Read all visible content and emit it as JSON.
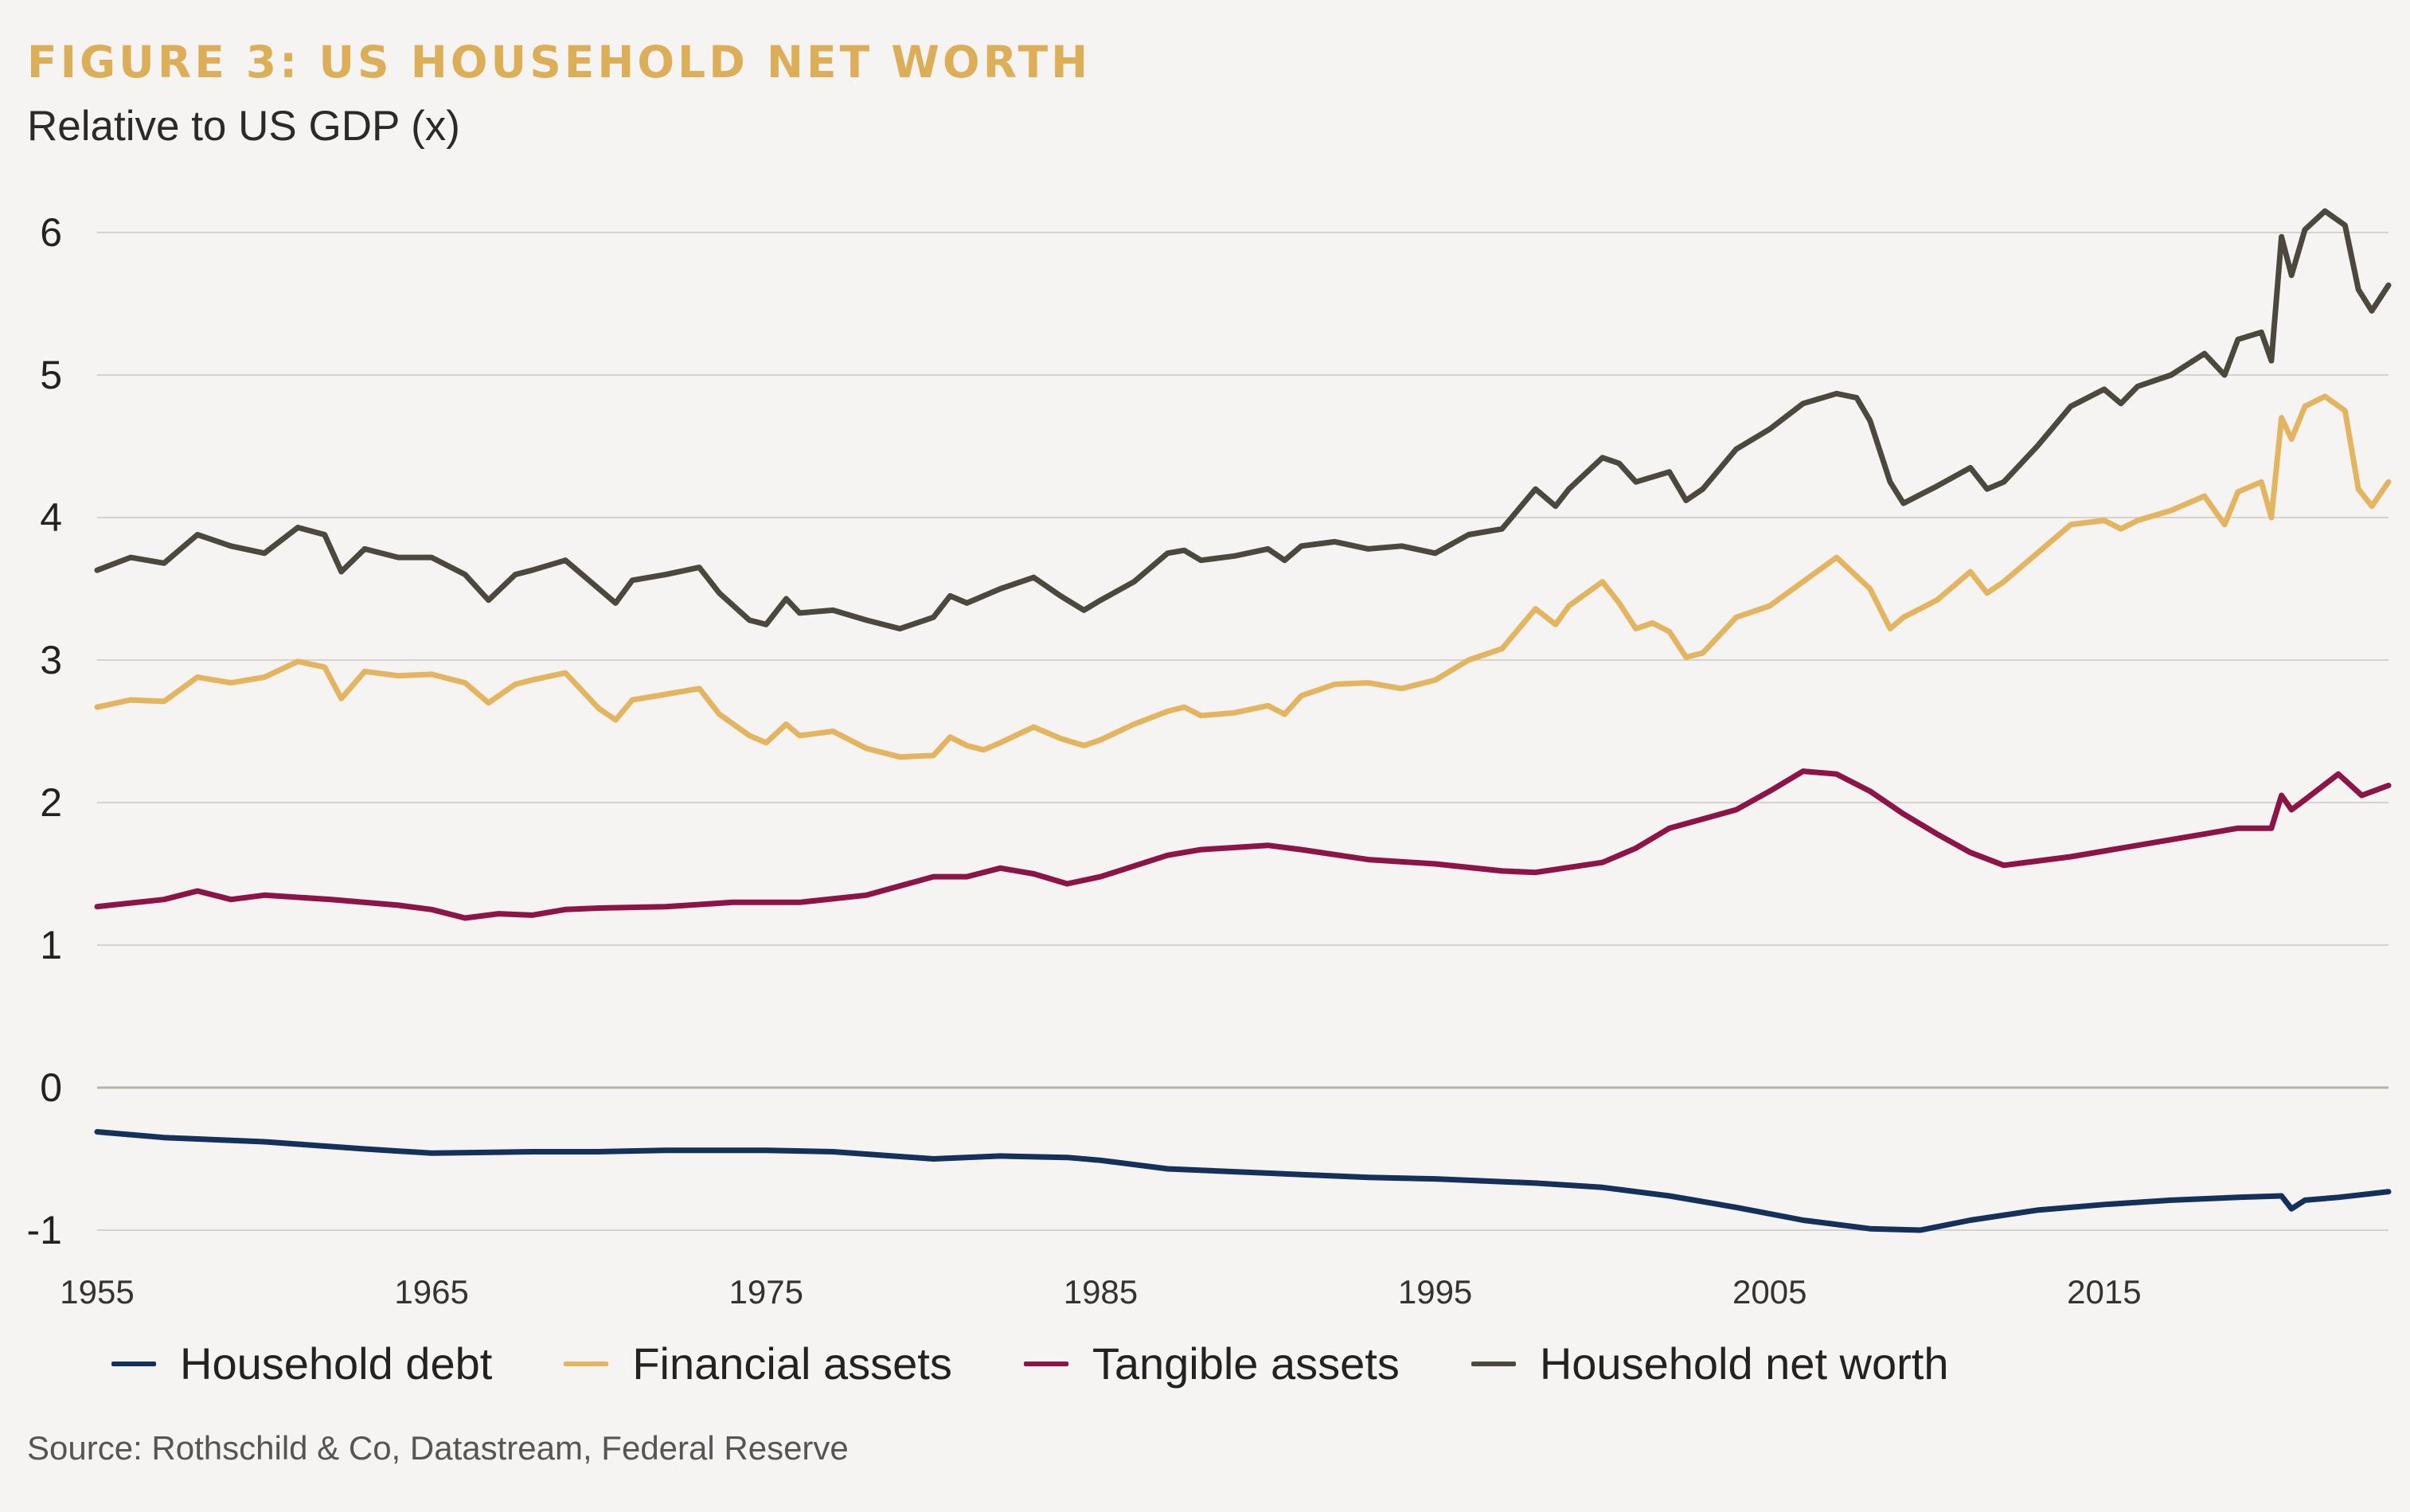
{
  "title": "FIGURE 3: US HOUSEHOLD NET WORTH",
  "subtitle": "Relative to US GDP (x)",
  "source": "Source: Rothschild & Co, Datastream, Federal Reserve",
  "chart_data": {
    "type": "line",
    "title": "FIGURE 3: US HOUSEHOLD NET WORTH",
    "subtitle": "Relative to US GDP (x)",
    "xlabel": "",
    "ylabel": "",
    "xlim": [
      1955,
      2023.5
    ],
    "ylim": [
      -1.1,
      6.2
    ],
    "x_ticks": [
      1955,
      1965,
      1975,
      1985,
      1995,
      2005,
      2015
    ],
    "y_ticks": [
      6,
      5,
      4,
      3,
      2,
      1,
      0,
      -1
    ],
    "grid": "horizontal",
    "legend_position": "bottom",
    "series": [
      {
        "name": "Household debt",
        "color": "#15305a",
        "points": [
          [
            1955,
            -0.31
          ],
          [
            1957,
            -0.35
          ],
          [
            1960,
            -0.38
          ],
          [
            1963,
            -0.43
          ],
          [
            1965,
            -0.46
          ],
          [
            1968,
            -0.45
          ],
          [
            1970,
            -0.45
          ],
          [
            1972,
            -0.44
          ],
          [
            1975,
            -0.44
          ],
          [
            1977,
            -0.45
          ],
          [
            1980,
            -0.5
          ],
          [
            1982,
            -0.48
          ],
          [
            1984,
            -0.49
          ],
          [
            1985,
            -0.51
          ],
          [
            1987,
            -0.57
          ],
          [
            1990,
            -0.6
          ],
          [
            1993,
            -0.63
          ],
          [
            1995,
            -0.64
          ],
          [
            1998,
            -0.67
          ],
          [
            2000,
            -0.7
          ],
          [
            2002,
            -0.76
          ],
          [
            2004,
            -0.84
          ],
          [
            2006,
            -0.93
          ],
          [
            2008,
            -0.99
          ],
          [
            2009.5,
            -1.0
          ],
          [
            2011,
            -0.93
          ],
          [
            2013,
            -0.86
          ],
          [
            2015,
            -0.82
          ],
          [
            2017,
            -0.79
          ],
          [
            2019,
            -0.77
          ],
          [
            2020.3,
            -0.76
          ],
          [
            2020.6,
            -0.85
          ],
          [
            2021,
            -0.79
          ],
          [
            2022,
            -0.77
          ],
          [
            2023.5,
            -0.73
          ]
        ]
      },
      {
        "name": "Financial assets",
        "color": "#e4b560",
        "points": [
          [
            1955,
            2.67
          ],
          [
            1956,
            2.72
          ],
          [
            1957,
            2.71
          ],
          [
            1958,
            2.88
          ],
          [
            1959,
            2.84
          ],
          [
            1960,
            2.88
          ],
          [
            1961,
            2.99
          ],
          [
            1961.8,
            2.95
          ],
          [
            1962.3,
            2.73
          ],
          [
            1963,
            2.92
          ],
          [
            1964,
            2.89
          ],
          [
            1965,
            2.9
          ],
          [
            1966,
            2.84
          ],
          [
            1966.7,
            2.7
          ],
          [
            1967.5,
            2.83
          ],
          [
            1968,
            2.86
          ],
          [
            1969,
            2.91
          ],
          [
            1970,
            2.66
          ],
          [
            1970.5,
            2.58
          ],
          [
            1971,
            2.72
          ],
          [
            1972,
            2.76
          ],
          [
            1973,
            2.8
          ],
          [
            1973.6,
            2.62
          ],
          [
            1974.5,
            2.47
          ],
          [
            1975,
            2.42
          ],
          [
            1975.6,
            2.55
          ],
          [
            1976,
            2.47
          ],
          [
            1977,
            2.5
          ],
          [
            1978,
            2.38
          ],
          [
            1979,
            2.32
          ],
          [
            1980,
            2.33
          ],
          [
            1980.5,
            2.46
          ],
          [
            1981,
            2.4
          ],
          [
            1981.5,
            2.37
          ],
          [
            1982,
            2.42
          ],
          [
            1983,
            2.53
          ],
          [
            1983.8,
            2.45
          ],
          [
            1984.5,
            2.4
          ],
          [
            1985,
            2.44
          ],
          [
            1986,
            2.55
          ],
          [
            1987,
            2.64
          ],
          [
            1987.5,
            2.67
          ],
          [
            1988,
            2.61
          ],
          [
            1989,
            2.63
          ],
          [
            1990,
            2.68
          ],
          [
            1990.5,
            2.62
          ],
          [
            1991,
            2.75
          ],
          [
            1992,
            2.83
          ],
          [
            1993,
            2.84
          ],
          [
            1994,
            2.8
          ],
          [
            1995,
            2.86
          ],
          [
            1996,
            3.0
          ],
          [
            1997,
            3.08
          ],
          [
            1998,
            3.36
          ],
          [
            1998.6,
            3.25
          ],
          [
            1999,
            3.38
          ],
          [
            2000,
            3.55
          ],
          [
            2000.5,
            3.4
          ],
          [
            2001,
            3.22
          ],
          [
            2001.5,
            3.26
          ],
          [
            2002,
            3.2
          ],
          [
            2002.5,
            3.02
          ],
          [
            2003,
            3.05
          ],
          [
            2004,
            3.3
          ],
          [
            2005,
            3.38
          ],
          [
            2006,
            3.55
          ],
          [
            2007,
            3.72
          ],
          [
            2008,
            3.5
          ],
          [
            2008.6,
            3.22
          ],
          [
            2009,
            3.3
          ],
          [
            2010,
            3.42
          ],
          [
            2011,
            3.62
          ],
          [
            2011.5,
            3.47
          ],
          [
            2012,
            3.55
          ],
          [
            2013,
            3.75
          ],
          [
            2014,
            3.95
          ],
          [
            2015,
            3.98
          ],
          [
            2015.5,
            3.92
          ],
          [
            2016,
            3.98
          ],
          [
            2017,
            4.05
          ],
          [
            2018,
            4.15
          ],
          [
            2018.6,
            3.95
          ],
          [
            2019,
            4.18
          ],
          [
            2019.7,
            4.25
          ],
          [
            2020,
            4.0
          ],
          [
            2020.3,
            4.7
          ],
          [
            2020.6,
            4.55
          ],
          [
            2021,
            4.78
          ],
          [
            2021.6,
            4.85
          ],
          [
            2022.2,
            4.75
          ],
          [
            2022.6,
            4.2
          ],
          [
            2023,
            4.08
          ],
          [
            2023.5,
            4.25
          ]
        ]
      },
      {
        "name": "Tangible assets",
        "color": "#8c1446",
        "points": [
          [
            1955,
            1.27
          ],
          [
            1957,
            1.32
          ],
          [
            1958,
            1.38
          ],
          [
            1959,
            1.32
          ],
          [
            1960,
            1.35
          ],
          [
            1962,
            1.32
          ],
          [
            1964,
            1.28
          ],
          [
            1965,
            1.25
          ],
          [
            1966,
            1.19
          ],
          [
            1967,
            1.22
          ],
          [
            1968,
            1.21
          ],
          [
            1969,
            1.25
          ],
          [
            1970,
            1.26
          ],
          [
            1972,
            1.27
          ],
          [
            1974,
            1.3
          ],
          [
            1976,
            1.3
          ],
          [
            1978,
            1.35
          ],
          [
            1980,
            1.48
          ],
          [
            1981,
            1.48
          ],
          [
            1982,
            1.54
          ],
          [
            1983,
            1.5
          ],
          [
            1984,
            1.43
          ],
          [
            1985,
            1.48
          ],
          [
            1987,
            1.63
          ],
          [
            1988,
            1.67
          ],
          [
            1990,
            1.7
          ],
          [
            1991,
            1.67
          ],
          [
            1993,
            1.6
          ],
          [
            1995,
            1.57
          ],
          [
            1997,
            1.52
          ],
          [
            1998,
            1.51
          ],
          [
            2000,
            1.58
          ],
          [
            2001,
            1.68
          ],
          [
            2002,
            1.82
          ],
          [
            2004,
            1.95
          ],
          [
            2005,
            2.08
          ],
          [
            2006,
            2.22
          ],
          [
            2007,
            2.2
          ],
          [
            2008,
            2.08
          ],
          [
            2009,
            1.92
          ],
          [
            2010,
            1.78
          ],
          [
            2011,
            1.65
          ],
          [
            2012,
            1.56
          ],
          [
            2014,
            1.62
          ],
          [
            2016,
            1.7
          ],
          [
            2018,
            1.78
          ],
          [
            2019,
            1.82
          ],
          [
            2020,
            1.82
          ],
          [
            2020.3,
            2.05
          ],
          [
            2020.6,
            1.95
          ],
          [
            2021,
            2.02
          ],
          [
            2022,
            2.2
          ],
          [
            2022.7,
            2.05
          ],
          [
            2023.5,
            2.12
          ]
        ]
      },
      {
        "name": "Household net worth",
        "color": "#4d483d",
        "points": [
          [
            1955,
            3.63
          ],
          [
            1956,
            3.72
          ],
          [
            1957,
            3.68
          ],
          [
            1958,
            3.88
          ],
          [
            1959,
            3.8
          ],
          [
            1960,
            3.75
          ],
          [
            1961,
            3.93
          ],
          [
            1961.8,
            3.88
          ],
          [
            1962.3,
            3.62
          ],
          [
            1963,
            3.78
          ],
          [
            1964,
            3.72
          ],
          [
            1965,
            3.72
          ],
          [
            1966,
            3.6
          ],
          [
            1966.7,
            3.42
          ],
          [
            1967.5,
            3.6
          ],
          [
            1968,
            3.63
          ],
          [
            1969,
            3.7
          ],
          [
            1970,
            3.5
          ],
          [
            1970.5,
            3.4
          ],
          [
            1971,
            3.56
          ],
          [
            1972,
            3.6
          ],
          [
            1973,
            3.65
          ],
          [
            1973.6,
            3.47
          ],
          [
            1974.5,
            3.28
          ],
          [
            1975,
            3.25
          ],
          [
            1975.6,
            3.43
          ],
          [
            1976,
            3.33
          ],
          [
            1977,
            3.35
          ],
          [
            1978,
            3.28
          ],
          [
            1979,
            3.22
          ],
          [
            1980,
            3.3
          ],
          [
            1980.5,
            3.45
          ],
          [
            1981,
            3.4
          ],
          [
            1982,
            3.5
          ],
          [
            1983,
            3.58
          ],
          [
            1983.8,
            3.45
          ],
          [
            1984.5,
            3.35
          ],
          [
            1985,
            3.42
          ],
          [
            1986,
            3.55
          ],
          [
            1987,
            3.75
          ],
          [
            1987.5,
            3.77
          ],
          [
            1988,
            3.7
          ],
          [
            1989,
            3.73
          ],
          [
            1990,
            3.78
          ],
          [
            1990.5,
            3.7
          ],
          [
            1991,
            3.8
          ],
          [
            1992,
            3.83
          ],
          [
            1993,
            3.78
          ],
          [
            1994,
            3.8
          ],
          [
            1995,
            3.75
          ],
          [
            1996,
            3.88
          ],
          [
            1997,
            3.92
          ],
          [
            1998,
            4.2
          ],
          [
            1998.6,
            4.08
          ],
          [
            1999,
            4.2
          ],
          [
            2000,
            4.42
          ],
          [
            2000.5,
            4.38
          ],
          [
            2001,
            4.25
          ],
          [
            2002,
            4.32
          ],
          [
            2002.5,
            4.12
          ],
          [
            2003,
            4.2
          ],
          [
            2004,
            4.48
          ],
          [
            2005,
            4.62
          ],
          [
            2006,
            4.8
          ],
          [
            2007,
            4.87
          ],
          [
            2007.6,
            4.84
          ],
          [
            2008,
            4.68
          ],
          [
            2008.6,
            4.25
          ],
          [
            2009,
            4.1
          ],
          [
            2010,
            4.22
          ],
          [
            2011,
            4.35
          ],
          [
            2011.5,
            4.2
          ],
          [
            2012,
            4.25
          ],
          [
            2013,
            4.5
          ],
          [
            2014,
            4.78
          ],
          [
            2015,
            4.9
          ],
          [
            2015.5,
            4.8
          ],
          [
            2016,
            4.92
          ],
          [
            2017,
            5.0
          ],
          [
            2018,
            5.15
          ],
          [
            2018.6,
            5.0
          ],
          [
            2019,
            5.25
          ],
          [
            2019.7,
            5.3
          ],
          [
            2020,
            5.1
          ],
          [
            2020.3,
            5.97
          ],
          [
            2020.6,
            5.7
          ],
          [
            2021,
            6.02
          ],
          [
            2021.6,
            6.15
          ],
          [
            2022.2,
            6.05
          ],
          [
            2022.6,
            5.6
          ],
          [
            2023,
            5.45
          ],
          [
            2023.5,
            5.63
          ]
        ]
      }
    ]
  }
}
